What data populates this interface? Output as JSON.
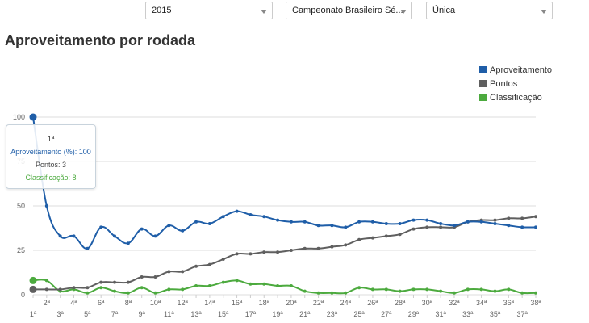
{
  "filters": {
    "year": "2015",
    "competition": "Campeonato Brasileiro Sé...",
    "phase": "Única"
  },
  "page": {
    "title": "Aproveitamento por rodada"
  },
  "colors": {
    "aproveitamento": "#1f5ea8",
    "pontos": "#5f5f5f",
    "classificacao": "#4caa3e",
    "grid": "#dddddd"
  },
  "tooltip": {
    "title": "1ª",
    "aproveitamento_label": "Aproveitamento (%): 100",
    "pontos_label": "Pontos: 3",
    "classificacao_label": "Classificação: 8"
  },
  "chart_data": {
    "type": "line",
    "title": "Aproveitamento por rodada",
    "xlabel": "",
    "ylabel": "",
    "ylim": [
      0,
      100
    ],
    "yticks": [
      0,
      25,
      50,
      75,
      100
    ],
    "grid": true,
    "legend_position": "top-right",
    "categories": [
      "1ª",
      "2ª",
      "3ª",
      "4ª",
      "5ª",
      "6ª",
      "7ª",
      "8ª",
      "9ª",
      "10ª",
      "11ª",
      "12ª",
      "13ª",
      "14ª",
      "15ª",
      "16ª",
      "17ª",
      "18ª",
      "19ª",
      "20ª",
      "21ª",
      "22ª",
      "23ª",
      "24ª",
      "25ª",
      "26ª",
      "27ª",
      "28ª",
      "29ª",
      "30ª",
      "31ª",
      "32ª",
      "33ª",
      "34ª",
      "35ª",
      "36ª",
      "37ª",
      "38ª"
    ],
    "series": [
      {
        "name": "Aproveitamento",
        "color": "#1f5ea8",
        "values": [
          100,
          50,
          33,
          33,
          26,
          38,
          33,
          29,
          37,
          33,
          39,
          36,
          41,
          40,
          44,
          47,
          45,
          44,
          42,
          41,
          41,
          39,
          39,
          38,
          41,
          41,
          40,
          40,
          42,
          42,
          40,
          39,
          41,
          41,
          40,
          39,
          38,
          38
        ]
      },
      {
        "name": "Pontos",
        "color": "#5f5f5f",
        "values": [
          3,
          3,
          3,
          4,
          4,
          7,
          7,
          7,
          10,
          10,
          13,
          13,
          16,
          17,
          20,
          23,
          23,
          24,
          24,
          25,
          26,
          26,
          27,
          28,
          31,
          32,
          33,
          34,
          37,
          38,
          38,
          38,
          41,
          42,
          42,
          43,
          43,
          44
        ]
      },
      {
        "name": "Classificação",
        "color": "#4caa3e",
        "values": [
          8,
          8,
          2,
          3,
          1,
          4,
          2,
          1,
          4,
          1,
          3,
          3,
          5,
          5,
          7,
          8,
          6,
          6,
          5,
          5,
          2,
          1,
          1,
          1,
          4,
          3,
          3,
          2,
          3,
          3,
          2,
          1,
          3,
          3,
          2,
          3,
          1,
          1
        ]
      }
    ]
  }
}
